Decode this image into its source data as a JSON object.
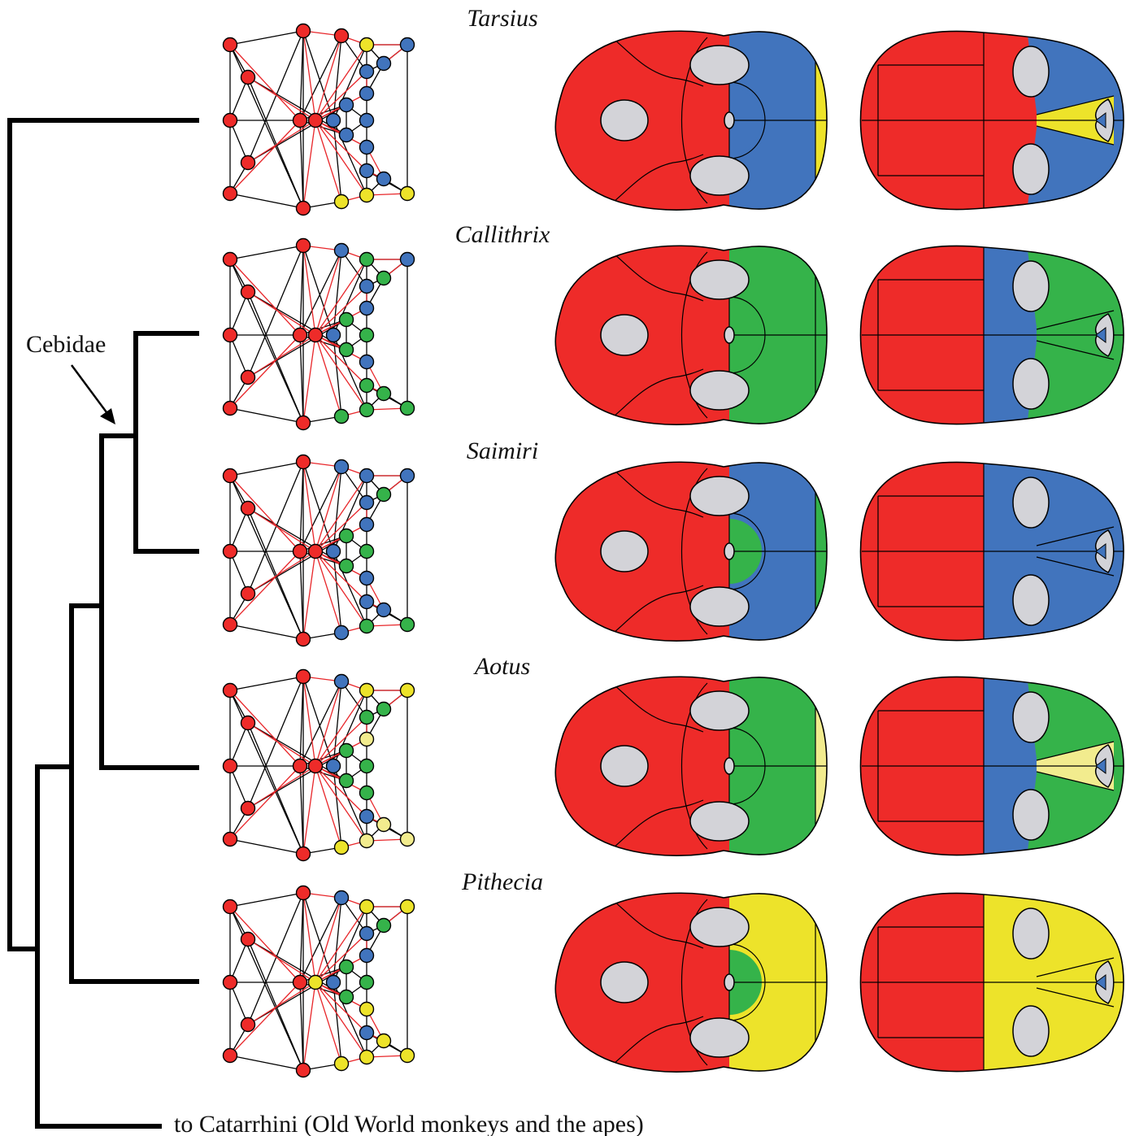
{
  "colors": {
    "red": "#ee2b29",
    "blue": "#4174bd",
    "green": "#35b34a",
    "yellow": "#ede32a",
    "pale_yellow": "#f2ec8e",
    "hole": "#d3d3d8"
  },
  "tree": {
    "clade_label": "Cebidae",
    "outgroup_label": "to Catarrhini (Old World monkeys and the apes)"
  },
  "taxa": [
    {
      "name": "Tarsius",
      "lateral_rear": "blue",
      "lateral_tip": "yellow",
      "lateral_inner": "blue",
      "dorsal_band": "red",
      "dorsal_rear": "blue",
      "dorsal_wedge": "yellow",
      "network_right": [
        "red",
        "red",
        "blue",
        "yellow",
        "yellow",
        "blue",
        "blue",
        "blue",
        "blue",
        "blue",
        "blue",
        "blue",
        "blue",
        "blue",
        "blue",
        "yellow",
        "yellow"
      ]
    },
    {
      "name": "Callithrix",
      "lateral_rear": "green",
      "lateral_tip": "green",
      "lateral_inner": "green",
      "dorsal_band": "blue",
      "dorsal_rear": "green",
      "dorsal_wedge": "none",
      "network_right": [
        "red",
        "blue",
        "blue",
        "green",
        "green",
        "blue",
        "blue",
        "green",
        "green",
        "green",
        "green",
        "blue",
        "blue",
        "green",
        "green",
        "green",
        "green"
      ]
    },
    {
      "name": "Saimiri",
      "lateral_rear": "blue",
      "lateral_tip": "green",
      "lateral_inner": "green",
      "dorsal_band": "blue",
      "dorsal_rear": "blue",
      "dorsal_wedge": "none",
      "network_right": [
        "red",
        "blue",
        "blue",
        "blue",
        "blue",
        "blue",
        "blue",
        "green",
        "green",
        "green",
        "green",
        "blue",
        "blue",
        "blue",
        "blue",
        "green",
        "green"
      ]
    },
    {
      "name": "Aotus",
      "lateral_rear": "green",
      "lateral_tip": "pale_yellow",
      "lateral_inner": "green",
      "dorsal_band": "blue",
      "dorsal_rear": "green",
      "dorsal_wedge": "pale_yellow",
      "network_right": [
        "red",
        "blue",
        "blue",
        "yellow",
        "yellow",
        "yellow",
        "green",
        "green",
        "green",
        "green",
        "green",
        "pale_yellow",
        "green",
        "pale_yellow",
        "blue",
        "pale_yellow",
        "pale_yellow"
      ]
    },
    {
      "name": "Pithecia",
      "lateral_rear": "yellow",
      "lateral_tip": "yellow",
      "lateral_inner": "green",
      "dorsal_band": "yellow",
      "dorsal_rear": "yellow",
      "dorsal_wedge": "none",
      "network_right": [
        "yellow",
        "blue",
        "blue",
        "yellow",
        "yellow",
        "yellow",
        "blue",
        "green",
        "green",
        "green",
        "green",
        "blue",
        "yellow",
        "yellow",
        "blue",
        "yellow",
        "yellow"
      ]
    }
  ]
}
